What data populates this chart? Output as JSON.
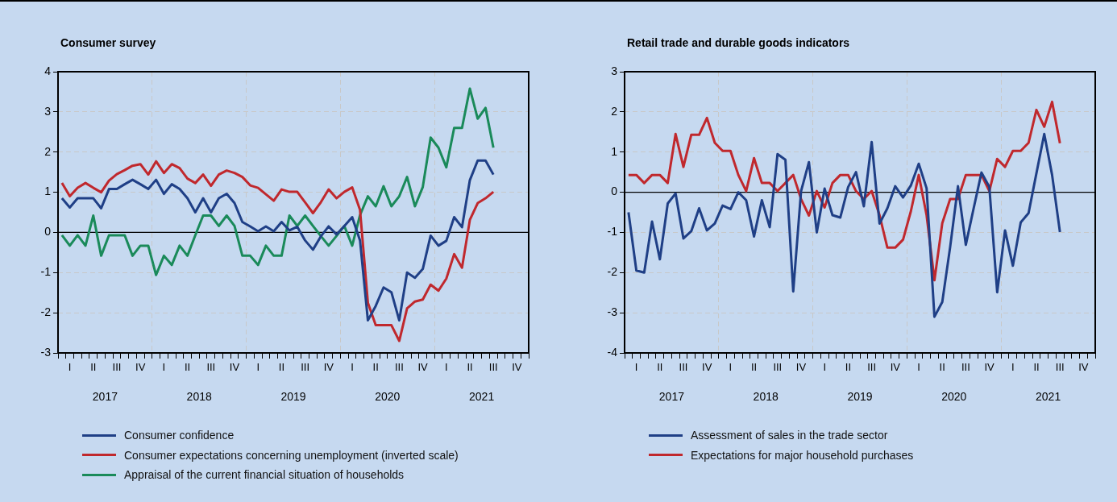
{
  "chart_data": [
    {
      "type": "line",
      "title": "Consumer survey",
      "categories": [
        null,
        "I",
        null,
        null,
        "II",
        null,
        null,
        "III",
        null,
        null,
        "IV",
        null,
        null,
        "I",
        null,
        null,
        "II",
        null,
        null,
        "III",
        null,
        null,
        "IV",
        null,
        null,
        "I",
        null,
        null,
        "II",
        null,
        null,
        "III",
        null,
        null,
        "IV",
        null,
        null,
        "I",
        null,
        null,
        "II",
        null,
        null,
        "III",
        null,
        null,
        "IV",
        null,
        null,
        "I",
        null,
        null,
        "II",
        null,
        null,
        "III",
        null,
        null,
        "IV",
        null
      ],
      "series": [
        {
          "name": "Consumer confidence",
          "color": "#1f3f86",
          "values": [
            0.85,
            0.62,
            0.85,
            0.85,
            0.85,
            0.6,
            1.08,
            1.08,
            1.2,
            1.31,
            1.2,
            1.08,
            1.31,
            0.96,
            1.2,
            1.08,
            0.85,
            0.5,
            0.85,
            0.5,
            0.85,
            0.96,
            0.73,
            0.26,
            0.15,
            0.03,
            0.15,
            0.03,
            0.26,
            0.05,
            0.14,
            -0.2,
            -0.43,
            -0.1,
            0.15,
            -0.05,
            0.16,
            0.38,
            -0.2,
            -2.19,
            -1.83,
            -1.37,
            -1.49,
            -2.19,
            -1.0,
            -1.13,
            -0.91,
            -0.08,
            -0.33,
            -0.21,
            0.38,
            0.13,
            1.3,
            1.79,
            1.79,
            1.44,
            null,
            null,
            null,
            null
          ]
        },
        {
          "name": "Consumer expectations concerning unemployment (inverted scale)",
          "color": "#c0282d",
          "values": [
            1.23,
            0.9,
            1.11,
            1.23,
            1.11,
            1.0,
            1.29,
            1.45,
            1.55,
            1.66,
            1.7,
            1.44,
            1.77,
            1.48,
            1.7,
            1.6,
            1.34,
            1.23,
            1.44,
            1.16,
            1.44,
            1.54,
            1.48,
            1.38,
            1.17,
            1.11,
            0.95,
            0.79,
            1.07,
            1.01,
            1.01,
            0.75,
            0.48,
            0.75,
            1.07,
            0.85,
            1.01,
            1.12,
            0.56,
            -1.75,
            -2.31,
            -2.31,
            -2.31,
            -2.7,
            -1.89,
            -1.72,
            -1.67,
            -1.3,
            -1.45,
            -1.15,
            -0.54,
            -0.88,
            0.31,
            0.73,
            0.85,
            1.01,
            null,
            null,
            null,
            null
          ]
        },
        {
          "name": "Appraisal of the current financial situation of households",
          "color": "#1a8a5a",
          "values": [
            -0.07,
            -0.33,
            -0.07,
            -0.33,
            0.42,
            -0.58,
            -0.07,
            -0.07,
            -0.07,
            -0.58,
            -0.33,
            -0.33,
            -1.06,
            -0.58,
            -0.81,
            -0.33,
            -0.58,
            -0.07,
            0.42,
            0.42,
            0.16,
            0.42,
            0.16,
            -0.58,
            -0.58,
            -0.81,
            -0.33,
            -0.58,
            -0.58,
            0.42,
            0.16,
            0.42,
            0.16,
            -0.09,
            -0.33,
            -0.09,
            0.16,
            -0.33,
            0.43,
            0.9,
            0.65,
            1.15,
            0.65,
            0.9,
            1.38,
            0.65,
            1.13,
            2.36,
            2.11,
            1.62,
            2.6,
            2.6,
            3.58,
            2.83,
            3.1,
            2.11,
            null,
            null,
            null,
            null
          ]
        }
      ],
      "ylim": [
        -3,
        4
      ],
      "yticks": [
        -3,
        -2,
        -1,
        0,
        1,
        2,
        3,
        4
      ],
      "ref_lines": [
        {
          "axis": "y",
          "value": 0,
          "color": "#000000"
        }
      ],
      "annotations": [
        "2017",
        "2018",
        "2019",
        "2020",
        "2021"
      ],
      "grid": true,
      "legend": "bottom",
      "marker": "none",
      "line_style": "solid"
    },
    {
      "type": "line",
      "title": "Retail trade and durable goods indicators",
      "categories": [
        null,
        "I",
        null,
        null,
        "II",
        null,
        null,
        "III",
        null,
        null,
        "IV",
        null,
        null,
        "I",
        null,
        null,
        "II",
        null,
        null,
        "III",
        null,
        null,
        "IV",
        null,
        null,
        "I",
        null,
        null,
        "II",
        null,
        null,
        "III",
        null,
        null,
        "IV",
        null,
        null,
        "I",
        null,
        null,
        "II",
        null,
        null,
        "III",
        null,
        null,
        "IV",
        null,
        null,
        "I",
        null,
        null,
        "II",
        null,
        null,
        "III",
        null,
        null,
        "IV",
        null
      ],
      "series": [
        {
          "name": "Assessment of sales in the trade sector",
          "color": "#1f3f86",
          "values": [
            -0.5,
            -1.95,
            -2.0,
            -0.73,
            -1.67,
            -0.28,
            -0.03,
            -1.15,
            -0.97,
            -0.4,
            -0.95,
            -0.78,
            -0.33,
            -0.42,
            0.0,
            -0.2,
            -1.1,
            -0.2,
            -0.87,
            0.95,
            0.81,
            -2.47,
            0.03,
            0.75,
            -1.0,
            0.09,
            -0.57,
            -0.63,
            0.13,
            0.5,
            -0.35,
            1.25,
            -0.78,
            -0.4,
            0.15,
            -0.13,
            0.17,
            0.71,
            0.1,
            -3.1,
            -2.73,
            -1.37,
            0.15,
            -1.31,
            -0.4,
            0.49,
            0.13,
            -2.49,
            -0.95,
            -1.83,
            -0.75,
            -0.52,
            0.47,
            1.45,
            0.43,
            -0.99,
            null,
            null,
            null,
            null
          ]
        },
        {
          "name": "Expectations for major household purchases",
          "color": "#c0282d",
          "values": [
            0.43,
            0.43,
            0.23,
            0.43,
            0.43,
            0.23,
            1.45,
            0.63,
            1.43,
            1.43,
            1.85,
            1.23,
            1.03,
            1.03,
            0.43,
            0.03,
            0.85,
            0.23,
            0.23,
            0.03,
            0.23,
            0.43,
            -0.17,
            -0.58,
            0.03,
            -0.38,
            0.23,
            0.43,
            0.43,
            0.03,
            -0.17,
            0.03,
            -0.57,
            -1.38,
            -1.38,
            -1.18,
            -0.47,
            0.43,
            -0.57,
            -2.19,
            -0.77,
            -0.17,
            -0.17,
            0.43,
            0.43,
            0.43,
            0.03,
            0.83,
            0.63,
            1.03,
            1.03,
            1.23,
            2.05,
            1.63,
            2.25,
            1.22,
            null,
            null,
            null,
            null
          ]
        }
      ],
      "ylim": [
        -4,
        3
      ],
      "yticks": [
        -4,
        -3,
        -2,
        -1,
        0,
        1,
        2,
        3
      ],
      "ref_lines": [
        {
          "axis": "y",
          "value": 0,
          "color": "#000000"
        }
      ],
      "annotations": [
        "2017",
        "2018",
        "2019",
        "2020",
        "2021"
      ],
      "grid": true,
      "legend": "bottom",
      "marker": "none",
      "line_style": "solid"
    }
  ]
}
